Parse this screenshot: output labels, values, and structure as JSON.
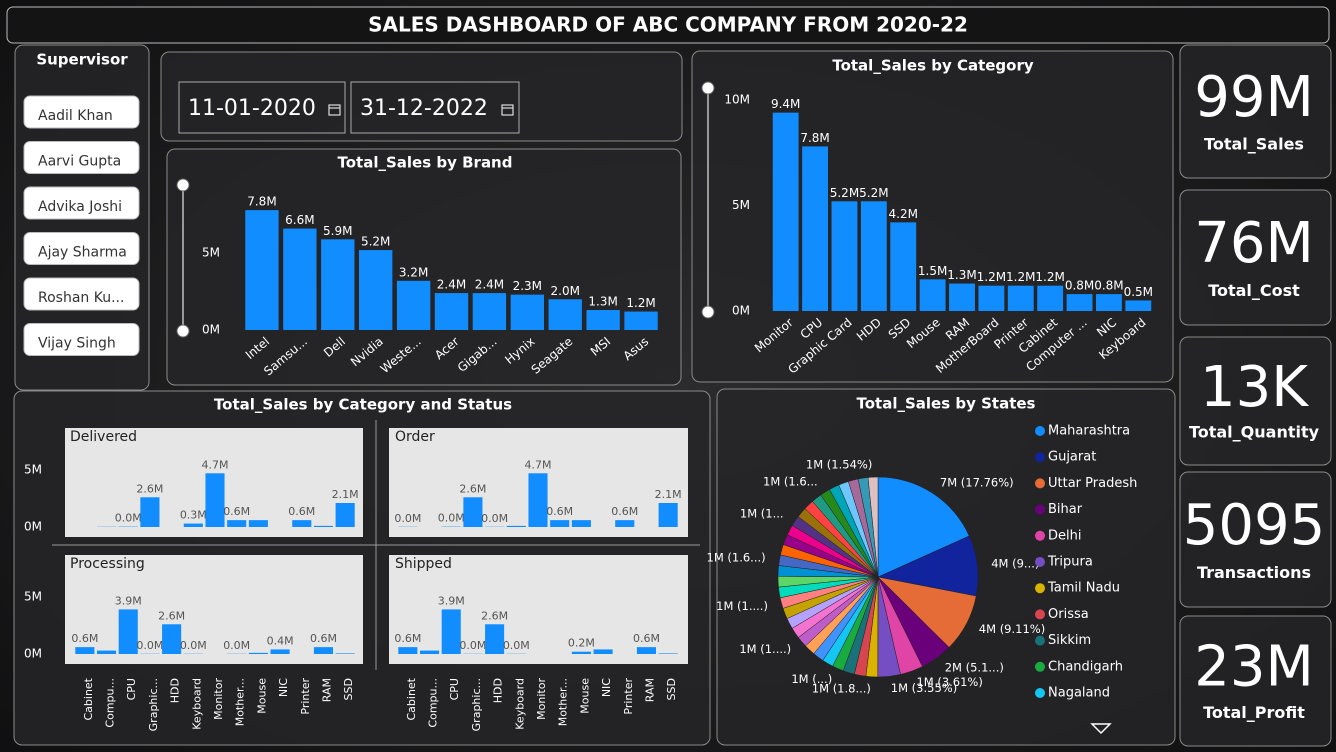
{
  "title": "SALES DASHBOARD OF ABC COMPANY  FROM 2020-22",
  "supervisor_slicer": {
    "title": "Supervisor",
    "items": [
      "Aadil Khan",
      "Aarvi Gupta",
      "Advika Joshi",
      "Ajay Sharma",
      "Roshan Ku...",
      "Vijay Singh"
    ]
  },
  "date_slicer": {
    "start": "11-01-2020",
    "end": "31-12-2022"
  },
  "kpis": [
    {
      "value": "99M",
      "label": "Total_Sales"
    },
    {
      "value": "76M",
      "label": "Total_Cost"
    },
    {
      "value": "13K",
      "label": "Total_Quantity"
    },
    {
      "value": "5095",
      "label": "Transactions"
    },
    {
      "value": "23M",
      "label": "Total_Profit"
    }
  ],
  "chart_data": [
    {
      "type": "bar",
      "title": "Total_Sales by Brand",
      "categories": [
        "Intel",
        "Samsu...",
        "Dell",
        "Nvidia",
        "Weste...",
        "Acer",
        "Gigab...",
        "Hynix",
        "Seagate",
        "MSI",
        "Asus"
      ],
      "values": [
        7800000,
        6600000,
        5900000,
        5200000,
        3200000,
        2400000,
        2400000,
        2300000,
        2000000,
        1300000,
        1200000
      ],
      "value_labels": [
        "7.8M",
        "6.6M",
        "5.9M",
        "5.2M",
        "3.2M",
        "2.4M",
        "2.4M",
        "2.3M",
        "2.0M",
        "1.3M",
        "1.2M"
      ],
      "color": "#118dff",
      "ylim": [
        0,
        9500000
      ],
      "yticks": [
        {
          "value": 0,
          "label": "0M"
        },
        {
          "value": 5000000,
          "label": "5M"
        }
      ],
      "grid": false
    },
    {
      "type": "bar",
      "title": "Total_Sales by Category",
      "categories": [
        "Monitor",
        "CPU",
        "Graphic Card",
        "HDD",
        "SSD",
        "Mouse",
        "RAM",
        "MotherBoard",
        "Printer",
        "Cabinet",
        "Computer ...",
        "NIC",
        "Keyboard"
      ],
      "values": [
        9400000,
        7800000,
        5200000,
        5200000,
        4200000,
        1500000,
        1300000,
        1200000,
        1200000,
        1200000,
        800000,
        800000,
        500000
      ],
      "value_labels": [
        "9.4M",
        "7.8M",
        "5.2M",
        "5.2M",
        "4.2M",
        "1.5M",
        "1.3M",
        "1.2M",
        "1.2M",
        "1.2M",
        "0.8M",
        "0.8M",
        "0.5M"
      ],
      "color": "#118dff",
      "ylim": [
        0,
        10000000
      ],
      "yticks": [
        {
          "value": 0,
          "label": "0M"
        },
        {
          "value": 5000000,
          "label": "5M"
        },
        {
          "value": 10000000,
          "label": "10M"
        }
      ],
      "grid": false
    },
    {
      "type": "bar",
      "title": "Total_Sales by Category and Status",
      "categories": [
        "Cabinet",
        "Compu...",
        "CPU",
        "Graphic...",
        "HDD",
        "Keyboard",
        "Monitor",
        "Mother...",
        "Mouse",
        "NIC",
        "Printer",
        "RAM",
        "SSD"
      ],
      "series": [
        {
          "name": "Delivered",
          "color": "#118dff",
          "values": [
            0,
            20000,
            30000,
            2600000,
            0,
            300000,
            4700000,
            600000,
            600000,
            0,
            600000,
            100000,
            2100000
          ],
          "value_labels": [
            null,
            null,
            "0.0M",
            "2.6M",
            null,
            "0.3M",
            "4.7M",
            "0.6M",
            null,
            null,
            "0.6M",
            null,
            "2.1M"
          ]
        },
        {
          "name": "Order",
          "color": "#118dff",
          "values": [
            20000,
            0,
            30000,
            2600000,
            20000,
            100000,
            4700000,
            600000,
            600000,
            0,
            600000,
            0,
            2100000
          ],
          "value_labels": [
            "0.0M",
            null,
            "0.0M",
            "2.6M",
            "0.0M",
            null,
            "4.7M",
            "0.6M",
            null,
            null,
            "0.6M",
            null,
            "2.1M"
          ]
        },
        {
          "name": "Processing",
          "color": "#118dff",
          "values": [
            600000,
            300000,
            3900000,
            20000,
            2600000,
            20000,
            0,
            20000,
            100000,
            400000,
            0,
            600000,
            50000
          ],
          "value_labels": [
            "0.6M",
            null,
            "3.9M",
            "0.0M",
            "2.6M",
            "0.0M",
            null,
            "0.0M",
            null,
            "0.4M",
            null,
            "0.6M",
            null
          ]
        },
        {
          "name": "Shipped",
          "color": "#118dff",
          "values": [
            600000,
            300000,
            3900000,
            20000,
            2600000,
            20000,
            0,
            0,
            200000,
            400000,
            0,
            600000,
            50000
          ],
          "value_labels": [
            "0.6M",
            null,
            "3.9M",
            "0.0M",
            "2.6M",
            "0.0M",
            null,
            null,
            "0.2M",
            null,
            null,
            "0.6M",
            null
          ]
        }
      ],
      "ylim": [
        0,
        7000000
      ],
      "yticks": [
        {
          "value": 0,
          "label": "0M"
        },
        {
          "value": 5000000,
          "label": "5M"
        }
      ],
      "grid": false
    },
    {
      "type": "pie",
      "title": "Total_Sales by States",
      "categories": [
        "Maharashtra",
        "Gujarat",
        "Uttar Pradesh",
        "Bihar",
        "Delhi",
        "Tripura",
        "Tamil Nadu",
        "Orissa",
        "Sikkim",
        "Chandigarh",
        "Nagaland",
        null,
        null,
        null,
        null,
        null,
        null,
        null,
        null,
        null,
        null,
        null,
        null,
        null,
        null,
        null,
        null,
        null,
        null,
        null,
        null,
        null,
        null,
        null,
        null
      ],
      "values": [
        17.76,
        9.5,
        9.11,
        5.1,
        3.61,
        3.55,
        1.85,
        1.82,
        1.8,
        1.78,
        1.76,
        1.75,
        1.74,
        1.72,
        1.71,
        1.7,
        1.7,
        1.69,
        1.68,
        1.68,
        1.67,
        1.66,
        1.65,
        1.65,
        1.64,
        1.63,
        1.62,
        1.62,
        1.61,
        1.6,
        1.6,
        1.58,
        1.56,
        1.55,
        1.54
      ],
      "value_labels": [
        "7M (17.76%)",
        "4M (9...)",
        "4M (9.11%)",
        "2M (5.1...)",
        "1M (3.61%)",
        "1M (3.55%)",
        "1M (1.8...)",
        null,
        null,
        "1M (...)",
        null,
        null,
        null,
        "1M (1....)",
        null,
        null,
        null,
        "1M (1....)",
        null,
        null,
        null,
        "1M (1.6...)",
        null,
        null,
        null,
        "1M (1...",
        null,
        null,
        null,
        "1M (1.6...",
        null,
        null,
        null,
        null,
        "1M (1.54%)"
      ],
      "colors": [
        "#118dff",
        "#12239e",
        "#e66c37",
        "#6b007b",
        "#e044a7",
        "#744ec2",
        "#d9b300",
        "#d64550",
        "#197278",
        "#1aab40",
        "#15c6f4",
        "#4092ff",
        "#ffa058",
        "#be5dc9",
        "#f472d0",
        "#b5a1ff",
        "#c4a200",
        "#ff8080",
        "#00dbbc",
        "#5bd667",
        "#0091d5",
        "#4668c5",
        "#ff6300",
        "#99008a",
        "#ec008c",
        "#533285",
        "#99700a",
        "#ff4141",
        "#1f9a85",
        "#25891c",
        "#00a6b8",
        "#6dc6ff",
        "#a66999",
        "#3599b8",
        "#dfbfbf"
      ],
      "legend": "right"
    }
  ]
}
